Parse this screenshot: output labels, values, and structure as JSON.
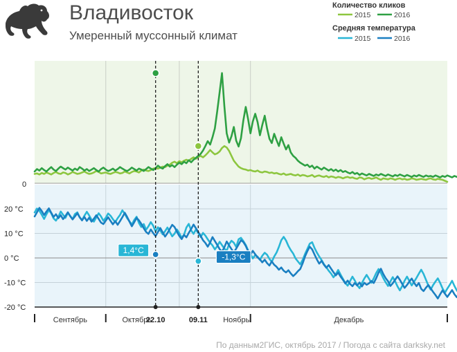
{
  "header": {
    "title": "Владивосток",
    "subtitle": "Умеренный муссонный климат"
  },
  "legend": {
    "clicks_title": "Количество кликов",
    "temp_title": "Средняя температура",
    "items": [
      {
        "group": "clicks",
        "year": "2015",
        "color": "#8dc63f"
      },
      {
        "group": "clicks",
        "year": "2016",
        "color": "#2ea043"
      },
      {
        "group": "temp",
        "year": "2015",
        "color": "#29b6d6"
      },
      {
        "group": "temp",
        "year": "2016",
        "color": "#1a7fc1"
      }
    ]
  },
  "colors": {
    "clicks_panel_bg": "#eef6e8",
    "temp_panel_bg": "#e9f4fa",
    "clicks_2015": "#8dc63f",
    "clicks_2016": "#2ea043",
    "temp_2015": "#29b6d6",
    "temp_2016": "#1a7fc1"
  },
  "icon": "panther-logo",
  "footer": "По данным2ГИС, октябрь 2017 / Погода с сайта darksky.net",
  "chart_data": [
    {
      "type": "line",
      "y_tick_labels": [
        "0"
      ],
      "series": [
        {
          "name": "2015",
          "values": [
            1.9,
            2.0,
            1.8,
            2.1,
            1.9,
            2.2,
            2.0,
            1.8,
            2.1,
            2.3,
            2.0,
            1.9,
            2.2,
            2.1,
            1.8,
            2.0,
            2.3,
            2.1,
            1.9,
            2.0,
            2.2,
            2.4,
            2.1,
            1.9,
            2.0,
            2.2,
            2.5,
            2.3,
            2.0,
            2.1,
            2.2,
            2.0,
            1.9,
            2.1,
            2.3,
            2.2,
            2.0,
            2.1,
            2.4,
            2.2,
            2.0,
            2.3,
            2.5,
            2.4,
            2.2,
            2.6,
            2.8,
            2.6,
            2.5,
            2.7,
            3.0,
            3.1,
            3.0,
            3.2,
            3.4,
            3.3,
            3.6,
            3.8,
            4.2,
            4.4,
            4.1,
            4.5,
            4.3,
            4.6,
            4.8,
            4.6,
            5.0,
            5.3,
            5.0,
            5.4,
            5.6,
            5.3,
            5.7,
            6.2,
            6.8,
            6.3,
            5.9,
            6.1,
            6.5,
            7.2,
            7.6,
            7.3,
            6.6,
            5.6,
            4.6,
            4.0,
            3.4,
            3.1,
            2.9,
            2.8,
            2.6,
            2.7,
            2.5,
            2.4,
            2.6,
            2.3,
            2.2,
            2.4,
            2.3,
            2.1,
            2.2,
            2.0,
            2.1,
            1.9,
            1.8,
            2.0,
            1.7,
            1.8,
            1.9,
            1.7,
            1.6,
            1.8,
            1.5,
            1.7,
            1.6,
            1.4,
            1.5,
            1.7,
            1.3,
            1.5,
            1.6,
            1.4,
            1.3,
            1.5,
            1.2,
            1.4,
            1.3,
            1.1,
            1.3,
            1.2,
            1.0,
            1.2,
            1.3,
            1.1,
            1.2,
            1.0,
            0.9,
            1.2,
            1.1,
            0.8,
            1.0,
            1.1,
            0.9,
            1.0,
            1.2,
            0.9,
            0.7,
            1.0,
            0.9,
            0.8,
            1.0,
            0.9,
            0.7,
            0.9,
            1.0,
            0.8,
            0.9,
            0.7,
            0.8,
            1.0,
            0.9,
            0.7,
            0.8,
            0.9,
            0.8,
            0.7,
            0.9,
            1.0,
            0.8,
            0.7,
            0.9,
            0.8,
            0.7,
            0.5,
            0.3
          ]
        },
        {
          "name": "2016",
          "values": [
            2.4,
            2.9,
            2.6,
            3.1,
            2.7,
            2.4,
            2.9,
            3.3,
            2.8,
            2.5,
            3.0,
            3.4,
            3.1,
            2.8,
            3.2,
            2.9,
            2.6,
            3.0,
            2.7,
            3.3,
            3.0,
            2.6,
            2.9,
            2.5,
            2.8,
            3.1,
            2.7,
            2.4,
            2.9,
            3.2,
            2.8,
            2.5,
            2.7,
            3.0,
            2.6,
            2.9,
            3.3,
            3.0,
            2.7,
            2.5,
            2.8,
            3.2,
            2.9,
            2.6,
            3.0,
            2.8,
            2.5,
            2.9,
            3.3,
            3.0,
            2.7,
            3.1,
            3.6,
            3.2,
            3.0,
            3.5,
            3.9,
            3.4,
            3.7,
            3.3,
            3.8,
            4.2,
            3.9,
            4.4,
            4.1,
            4.7,
            4.3,
            4.8,
            5.2,
            5.6,
            6.0,
            6.7,
            7.6,
            8.6,
            7.9,
            9.4,
            11.2,
            14.7,
            18.6,
            22.5,
            15.8,
            10.2,
            8.3,
            9.6,
            11.5,
            8.7,
            7.5,
            9.2,
            12.8,
            15.6,
            13.1,
            10.2,
            12.6,
            14.2,
            12.5,
            9.8,
            11.9,
            13.8,
            11.2,
            9.1,
            8.2,
            10.1,
            8.8,
            7.6,
            9.4,
            8.1,
            6.9,
            7.8,
            6.3,
            5.6,
            5.2,
            4.6,
            4.2,
            3.9,
            3.6,
            3.8,
            3.3,
            3.6,
            3.0,
            3.4,
            3.1,
            2.8,
            3.2,
            2.9,
            2.6,
            2.9,
            2.5,
            2.8,
            2.4,
            2.7,
            2.3,
            2.5,
            2.2,
            2.0,
            2.3,
            1.9,
            2.1,
            1.7,
            2.0,
            1.8,
            1.6,
            1.9,
            1.7,
            1.5,
            1.8,
            1.6,
            1.9,
            1.7,
            1.5,
            1.8,
            1.6,
            1.4,
            1.7,
            1.5,
            1.8,
            1.6,
            1.4,
            1.7,
            1.5,
            1.3,
            1.6,
            1.4,
            1.7,
            1.5,
            1.3,
            1.6,
            1.4,
            1.5,
            1.3,
            1.6,
            1.4,
            1.2,
            1.5,
            1.3,
            1.6,
            1.4,
            1.2,
            1.5,
            1.3,
            1.4,
            1.2,
            1.5,
            1.3,
            1.2,
            1.4,
            1.3,
            1.4,
            1.3,
            1.2,
            1.3,
            1.3,
            1.2
          ]
        }
      ],
      "markers": [
        {
          "series": "2016",
          "label": "22.10",
          "value": 22.5
        },
        {
          "series": "2015",
          "label": "09.11",
          "value": 7.6
        }
      ],
      "ylim": [
        0,
        25
      ]
    },
    {
      "type": "line",
      "y_ticks": [
        20,
        10,
        0,
        -10,
        -20
      ],
      "y_tick_labels": [
        "20 °C",
        "10 °C",
        "0 °C",
        "-10 °C",
        "-20 °C"
      ],
      "ylim": [
        -20,
        27
      ],
      "series": [
        {
          "name": "2015",
          "values": [
            18.5,
            20.1,
            19.2,
            17.6,
            15.9,
            17.8,
            19.5,
            18.2,
            16.1,
            15.2,
            16.8,
            18.9,
            17.6,
            16.3,
            18.4,
            17.1,
            15.8,
            17.9,
            18.6,
            16.5,
            15.4,
            17.2,
            18.8,
            17.3,
            15.6,
            14.8,
            16.5,
            18.2,
            16.9,
            15.1,
            16.4,
            18.1,
            17.2,
            15.8,
            14.6,
            16.2,
            17.5,
            19.4,
            18.0,
            16.2,
            14.9,
            13.6,
            15.5,
            16.8,
            14.2,
            12.6,
            13.8,
            11.5,
            12.9,
            14.6,
            13.1,
            10.8,
            12.5,
            11.2,
            9.6,
            10.9,
            12.4,
            10.6,
            8.8,
            9.9,
            11.6,
            10.1,
            8.2,
            9.5,
            12.4,
            13.9,
            11.2,
            9.8,
            11.6,
            10.1,
            8.5,
            10.2,
            9.1,
            7.6,
            6.2,
            5.1,
            3.5,
            4.8,
            6.6,
            5.2,
            3.8,
            2.9,
            5.6,
            7.0,
            6.2,
            4.5,
            7.6,
            8.2,
            6.9,
            5.3,
            3.1,
            1.6,
            -0.2,
            1.2,
            0.5,
            -0.8,
            0.9,
            2.1,
            1.3,
            -0.4,
            -1.6,
            0.6,
            2.2,
            4.5,
            7.2,
            8.6,
            7.1,
            4.9,
            3.2,
            1.8,
            -0.2,
            -1.4,
            -2.6,
            -0.8,
            1.6,
            3.7,
            5.8,
            6.4,
            4.1,
            2.2,
            0.6,
            -0.9,
            -2.6,
            -3.8,
            -5.2,
            -6.4,
            -7.9,
            -6.6,
            -4.9,
            -6.8,
            -8.5,
            -10.2,
            -11.3,
            -9.4,
            -7.6,
            -9.2,
            -11.1,
            -12.3,
            -10.2,
            -8.4,
            -6.9,
            -8.5,
            -10.1,
            -8.3,
            -6.2,
            -4.5,
            -6.1,
            -8.2,
            -9.9,
            -11.4,
            -9.6,
            -7.8,
            -9.5,
            -11.6,
            -13.2,
            -11.4,
            -9.3,
            -7.6,
            -9.4,
            -11.2,
            -9.7,
            -8.1,
            -6.4,
            -4.8,
            -6.5,
            -8.9,
            -11.2,
            -12.9,
            -11.1,
            -9.6,
            -8.3,
            -10.2,
            -12.4,
            -14.1,
            -12.5,
            -11.0,
            -9.3,
            -11.4,
            -13.2,
            -14.4,
            -13.6,
            -12.5,
            -11.2,
            -10.1,
            -10.6
          ]
        },
        {
          "name": "2016",
          "values": [
            16.9,
            18.6,
            20.4,
            19.1,
            17.5,
            18.9,
            20.2,
            18.4,
            16.7,
            17.8,
            16.2,
            17.4,
            15.8,
            17.1,
            18.6,
            17.0,
            15.7,
            16.9,
            18.2,
            16.6,
            15.3,
            16.7,
            15.1,
            16.4,
            14.8,
            16.0,
            17.4,
            15.9,
            14.4,
            13.8,
            15.2,
            16.6,
            15.1,
            13.7,
            15.0,
            13.5,
            15.0,
            16.6,
            18.4,
            16.7,
            14.8,
            12.9,
            14.6,
            16.3,
            15.3,
            13.9,
            12.1,
            10.6,
            9.8,
            11.6,
            10.1,
            8.9,
            10.6,
            12.2,
            10.4,
            8.7,
            10.1,
            11.8,
            13.5,
            12.6,
            10.7,
            9.0,
            7.7,
            9.4,
            8.4,
            10.2,
            11.8,
            13.6,
            12.1,
            10.6,
            9.0,
            7.2,
            6.1,
            4.6,
            6.3,
            8.5,
            6.9,
            5.3,
            3.6,
            2.5,
            4.3,
            6.7,
            5.1,
            3.6,
            2.2,
            3.8,
            5.5,
            7.2,
            6.5,
            4.9,
            2.8,
            1.4,
            2.9,
            1.5,
            0.2,
            -0.6,
            -1.8,
            -0.7,
            -2.1,
            -3.1,
            -1.4,
            -2.8,
            -3.6,
            -4.8,
            -3.9,
            -5.2,
            -5.9,
            -5.0,
            -6.3,
            -7.4,
            -6.5,
            -5.4,
            -4.5,
            -2.2,
            0.6,
            2.8,
            4.6,
            3.5,
            1.4,
            -0.6,
            -2.3,
            -1.2,
            -2.8,
            -4.0,
            -2.9,
            -4.4,
            -5.8,
            -7.1,
            -6.0,
            -7.6,
            -8.9,
            -10.4,
            -9.2,
            -10.6,
            -11.5,
            -10.2,
            -11.2,
            -10.0,
            -11.6,
            -10.1,
            -10.9,
            -10.3,
            -9.4,
            -10.2,
            -8.3,
            -6.0,
            -4.4,
            -6.5,
            -8.2,
            -9.5,
            -11.4,
            -10.3,
            -8.9,
            -7.5,
            -8.9,
            -10.6,
            -12.2,
            -11.0,
            -9.6,
            -8.4,
            -10.1,
            -11.5,
            -10.2,
            -12.6,
            -13.5,
            -12.1,
            -11.0,
            -12.4,
            -13.8,
            -15.1,
            -16.5,
            -14.8,
            -13.2,
            -14.6,
            -15.9,
            -14.5,
            -13.1,
            -14.8,
            -16.0,
            -14.6,
            -13.2,
            -12.0,
            -11.0,
            -10.4
          ]
        }
      ],
      "callouts": [
        {
          "series": "2016",
          "label": "22.10",
          "value": 1.4,
          "text": "1,4°C"
        },
        {
          "series": "2016",
          "label": "09.11",
          "value": -1.3,
          "text": "-1,3°C"
        }
      ]
    }
  ],
  "x_axis": {
    "months": [
      "Сентябрь",
      "Октябрь",
      "Ноябрь",
      "Декабрь"
    ],
    "dates": [
      "22.10",
      "09.11"
    ]
  }
}
